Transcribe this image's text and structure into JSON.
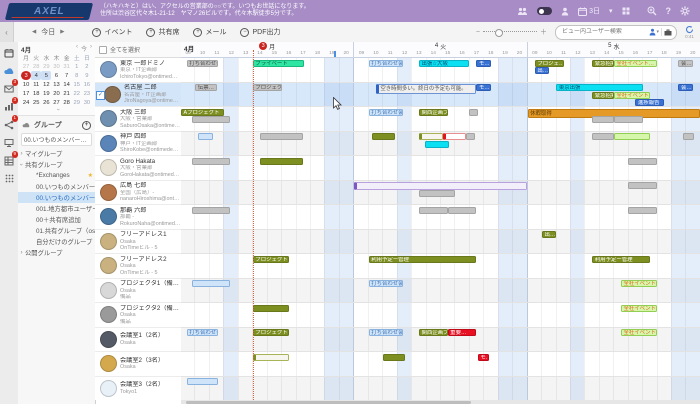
{
  "banner": {
    "logo": "AXEL",
    "greeting_line1": "（ハキハキと）はい、アクセルの営業部の○○です。いつもお世話になります。",
    "greeting_line2": "住所は渋谷区代々木1-21-12　ヤマノ26ビルです。代々木駅徒歩5分です。",
    "view_selector": "3日",
    "help": "?"
  },
  "toolbar": {
    "collapse": "‹",
    "prev": "◀",
    "today": "今日",
    "next": "▶",
    "event_btn": "イベント",
    "share_btn": "共有席",
    "mail_btn": "メール",
    "pdf_btn": "PDF出力",
    "zoom_minus": "−",
    "zoom_plus": "＋",
    "search_placeholder": "ビュー内ユーザー検索",
    "refresh_timer": "0:41"
  },
  "rail": {
    "badges": {
      "mail": "3",
      "stats": "3",
      "share": "1",
      "sheet": "9"
    }
  },
  "mini_calendar": {
    "title": "4月",
    "nav_prev": "‹",
    "nav_today": "今",
    "nav_next": "›",
    "dow": [
      "月",
      "火",
      "水",
      "木",
      "金",
      "土",
      "日"
    ],
    "weeks": [
      [
        "27",
        "28",
        "29",
        "30",
        "31",
        "1",
        "2"
      ],
      [
        "3",
        "4",
        "5",
        "6",
        "7",
        "8",
        "9"
      ],
      [
        "10",
        "11",
        "12",
        "13",
        "14",
        "15",
        "16"
      ],
      [
        "17",
        "18",
        "19",
        "20",
        "21",
        "22",
        "23"
      ],
      [
        "24",
        "25",
        "26",
        "27",
        "28",
        "29",
        "30"
      ]
    ],
    "today": "3",
    "selected_range": [
      "4",
      "5"
    ]
  },
  "groups": {
    "header": "グループ",
    "current": "00.いつものメンバー岡本…",
    "items": [
      {
        "label": "マイグループ",
        "level": 0,
        "arrow": "›"
      },
      {
        "label": "共有グループ",
        "level": 0,
        "arrow": "expanded"
      },
      {
        "label": "*Exchanges",
        "level": 1,
        "star": true
      },
      {
        "label": "00.いつものメンバー",
        "level": 1
      },
      {
        "label": "00.いつものメンバー…",
        "level": 1,
        "star": true,
        "selected": true
      },
      {
        "label": "001.地方都市ユーザー",
        "level": 1
      },
      {
        "label": "00＋共有席追加",
        "level": 1
      },
      {
        "label": "01.共有グループ（osd作…）",
        "level": 1
      },
      {
        "label": "自分だけのグループ",
        "level": 1
      },
      {
        "label": "公開グループ",
        "level": 0,
        "arrow": "›"
      }
    ]
  },
  "user_list": {
    "select_all": "全てを選択",
    "users": [
      {
        "name": "東京 一郎ドミノ",
        "dept": "東京・IT企画部",
        "email": "IchiroTokyo@ontimed…",
        "color": "#7a9cc4",
        "selected": false
      },
      {
        "name": "名古屋 二郎",
        "dept": "名古屋・IT企画部",
        "email": "JiroNagoya@ontimede…",
        "color": "#8a6d4f",
        "selected": true
      },
      {
        "name": "大阪 三郎",
        "dept": "大阪・営業部",
        "email": "SaburoOsaka@ontime…",
        "color": "#6f8fb0",
        "selected": false
      },
      {
        "name": "神戸 四郎",
        "dept": "神戸・IT企画部",
        "email": "ShiroKobe@ontimede…",
        "color": "#5b84b8",
        "selected": false
      },
      {
        "name": "Goro Hakata",
        "dept": "大阪・営業部",
        "email": "GoroHakata@ontimed…",
        "color": "#e8e3d5",
        "selected": false
      },
      {
        "name": "広島 七郎",
        "dept": "全国（広島）-",
        "email": "nanaroHiroshima@ont…",
        "color": "#b5774a",
        "selected": false
      },
      {
        "name": "那覇 六郎",
        "dept": "那覇 -",
        "email": "RokuroNaha@ontimed…",
        "color": "#4a7ba6",
        "selected": false
      },
      {
        "name": "フリーアドレス1",
        "dept": "Osaka",
        "email": "OnTimeビル - 5",
        "color": "#c9b280",
        "selected": false
      },
      {
        "name": "フリーアドレス2",
        "dept": "Osaka",
        "email": "OnTimeビル - 5",
        "color": "#c9b280",
        "selected": false
      },
      {
        "name": "プロジェクタ1（備品）",
        "dept": "Osaka",
        "email": "備品",
        "color": "#d8d8d8",
        "selected": false
      },
      {
        "name": "プロジェクタ2（備品）",
        "dept": "Osaka",
        "email": "備品",
        "color": "#9a9a9a",
        "selected": false
      },
      {
        "name": "会議室1（2名）",
        "dept": "Osaka",
        "email": "",
        "color": "#555b66",
        "selected": false
      },
      {
        "name": "会議室2（3名）",
        "dept": "Osaka",
        "email": "",
        "color": "#d4a94e",
        "selected": false
      },
      {
        "name": "会議室3（2名）",
        "dept": "Tokyo1",
        "email": "",
        "color": "#e8f0f8",
        "selected": false
      }
    ]
  },
  "grid": {
    "month_label": "4月",
    "days": [
      {
        "num": "3",
        "dow": "月",
        "today": true
      },
      {
        "num": "4",
        "dow": "火",
        "today": false
      },
      {
        "num": "5",
        "dow": "水",
        "today": false
      }
    ],
    "hours": [
      "09",
      "10",
      "11",
      "12",
      "13",
      "14",
      "15",
      "16",
      "17",
      "18",
      "19",
      "20"
    ],
    "events": [
      {
        "r": 0,
        "d": 0,
        "s": 9.4,
        "e": 11.6,
        "t": "gray",
        "l": "打ち合わせ会議",
        "ln": 0
      },
      {
        "r": 0,
        "d": 0,
        "s": 14,
        "e": 17.6,
        "t": "mint",
        "l": "プライベート",
        "ln": 0
      },
      {
        "r": 0,
        "d": 1,
        "s": 10,
        "e": 12.4,
        "t": "meeting",
        "l": "打ち合わせ会議",
        "ln": 0
      },
      {
        "r": 0,
        "d": 1,
        "s": 13.5,
        "e": 17,
        "t": "cyan",
        "l": "出張☆大阪",
        "ln": 0
      },
      {
        "r": 0,
        "d": 1,
        "s": 17.5,
        "e": 18.5,
        "t": "blue",
        "l": "モ…",
        "ln": 0
      },
      {
        "r": 0,
        "d": 2,
        "s": 9.5,
        "e": 11.5,
        "t": "olive",
        "l": "プロジェ…",
        "ln": 0
      },
      {
        "r": 0,
        "d": 2,
        "s": 13.5,
        "e": 15,
        "t": "olive",
        "l": "緊急招集…",
        "ln": 0
      },
      {
        "r": 0,
        "d": 2,
        "s": 15,
        "e": 18,
        "t": "lgreen",
        "l": "全社イベント…",
        "ln": 0
      },
      {
        "r": 0,
        "d": 2,
        "s": 19.5,
        "e": 20.5,
        "t": "gray",
        "l": "会…",
        "ln": 0
      },
      {
        "r": 0,
        "d": 2,
        "s": 9.5,
        "e": 10.5,
        "t": "blue",
        "l": "出…",
        "ln": 1
      },
      {
        "r": 1,
        "d": 0,
        "s": 10,
        "e": 11.5,
        "t": "gray",
        "l": "伝票…",
        "ln": 0
      },
      {
        "r": 1,
        "d": 0,
        "s": 14,
        "e": 16,
        "t": "gray",
        "l": "プロジェクト…",
        "ln": 0
      },
      {
        "r": 1,
        "d": 1,
        "s": 10.5,
        "e": 17.5,
        "t": "tip",
        "l": "空き時間多い。終日の予定も可能。",
        "ln": 0
      },
      {
        "r": 1,
        "d": 1,
        "s": 17.5,
        "e": 18.5,
        "t": "blue",
        "l": "モ…",
        "ln": 0
      },
      {
        "r": 1,
        "d": 2,
        "s": 11,
        "e": 17,
        "t": "cyan",
        "l": "東京出張",
        "ln": 0
      },
      {
        "r": 1,
        "d": 2,
        "s": 19.5,
        "e": 20.5,
        "t": "blue",
        "l": "会…",
        "ln": 0
      },
      {
        "r": 1,
        "d": 2,
        "s": 13.5,
        "e": 15,
        "t": "olive",
        "l": "緊急招集…",
        "ln": 1
      },
      {
        "r": 1,
        "d": 2,
        "s": 15,
        "e": 17.5,
        "t": "lgreen",
        "l": "全社イベント…",
        "ln": 1
      },
      {
        "r": 1,
        "d": 2,
        "s": 16.5,
        "e": 18.5,
        "t": "blue",
        "l": "進捗報告",
        "ln": 2
      },
      {
        "r": 2,
        "d": 0,
        "s": 9,
        "e": 12,
        "t": "olive",
        "l": "Aプロジェクト",
        "ln": 0
      },
      {
        "r": 2,
        "d": 0,
        "s": 9.8,
        "e": 12.4,
        "t": "gray",
        "l": "",
        "ln": 1
      },
      {
        "r": 2,
        "d": 1,
        "s": 10,
        "e": 12.4,
        "t": "meeting",
        "l": "打ち合わせ会議",
        "ln": 0
      },
      {
        "r": 2,
        "d": 1,
        "s": 13.5,
        "e": 15.5,
        "t": "olive",
        "l": "関西企画プ…",
        "ln": 0
      },
      {
        "r": 2,
        "d": 1,
        "s": 17,
        "e": 17.6,
        "t": "gray",
        "l": "",
        "ln": 0
      },
      {
        "r": 2,
        "d": 2,
        "s": 9,
        "e": 21,
        "t": "orange",
        "l": "休暇取得",
        "ln": 0
      },
      {
        "r": 2,
        "d": 2,
        "s": 13.5,
        "e": 15,
        "t": "gray",
        "l": "",
        "ln": 1
      },
      {
        "r": 2,
        "d": 2,
        "s": 15,
        "e": 17,
        "t": "gray",
        "l": "",
        "ln": 1
      },
      {
        "r": 3,
        "d": 0,
        "s": 10.2,
        "e": 11.2,
        "t": "meeting",
        "l": "",
        "ln": 0
      },
      {
        "r": 3,
        "d": 0,
        "s": 14.5,
        "e": 17.5,
        "t": "gray",
        "l": "",
        "ln": 0
      },
      {
        "r": 3,
        "d": 1,
        "s": 10.2,
        "e": 11.8,
        "t": "olive",
        "l": "",
        "ln": 0
      },
      {
        "r": 3,
        "d": 1,
        "s": 13.5,
        "e": 15.2,
        "t": "wolive",
        "l": "",
        "ln": 0
      },
      {
        "r": 3,
        "d": 1,
        "s": 15.2,
        "e": 16.8,
        "t": "wred",
        "l": "",
        "ln": 0
      },
      {
        "r": 3,
        "d": 1,
        "s": 16.8,
        "e": 17.4,
        "t": "gray",
        "l": "",
        "ln": 0
      },
      {
        "r": 3,
        "d": 1,
        "s": 13.9,
        "e": 15.6,
        "t": "cyan",
        "l": "",
        "ln": 1
      },
      {
        "r": 3,
        "d": 2,
        "s": 13.5,
        "e": 15,
        "t": "gray",
        "l": "",
        "ln": 0
      },
      {
        "r": 3,
        "d": 2,
        "s": 15,
        "e": 17.5,
        "t": "lgreen",
        "l": "",
        "ln": 0
      },
      {
        "r": 3,
        "d": 2,
        "s": 19.8,
        "e": 20.6,
        "t": "gray",
        "l": "",
        "ln": 0
      },
      {
        "r": 4,
        "d": 0,
        "s": 9.8,
        "e": 12.4,
        "t": "gray",
        "l": "",
        "ln": 0
      },
      {
        "r": 4,
        "d": 0,
        "s": 14.5,
        "e": 17.5,
        "t": "olive",
        "l": "",
        "ln": 0
      },
      {
        "r": 4,
        "d": 2,
        "s": 16,
        "e": 18,
        "t": "gray",
        "l": "",
        "ln": 0
      },
      {
        "r": 5,
        "d": 1,
        "s": 9,
        "e": 21,
        "t": "lav",
        "l": "",
        "ln": 0
      },
      {
        "r": 5,
        "d": 1,
        "s": 13.5,
        "e": 16,
        "t": "gray",
        "l": "",
        "ln": 1
      },
      {
        "r": 5,
        "d": 2,
        "s": 16,
        "e": 18,
        "t": "gray",
        "l": "",
        "ln": 0
      },
      {
        "r": 6,
        "d": 0,
        "s": 9.8,
        "e": 12.4,
        "t": "gray",
        "l": "",
        "ln": 0
      },
      {
        "r": 6,
        "d": 1,
        "s": 13.5,
        "e": 15.5,
        "t": "gray",
        "l": "",
        "ln": 0
      },
      {
        "r": 6,
        "d": 1,
        "s": 15.5,
        "e": 17.5,
        "t": "gray",
        "l": "",
        "ln": 0
      },
      {
        "r": 6,
        "d": 2,
        "s": 16,
        "e": 18,
        "t": "gray",
        "l": "",
        "ln": 0
      },
      {
        "r": 7,
        "d": 2,
        "s": 10,
        "e": 11,
        "t": "olive",
        "l": "出…",
        "ln": 0
      },
      {
        "r": 8,
        "d": 0,
        "s": 14,
        "e": 16.5,
        "t": "olive",
        "l": "プロジェクト…",
        "ln": 0
      },
      {
        "r": 8,
        "d": 1,
        "s": 10,
        "e": 17.5,
        "t": "olive",
        "l": "利用予定ー管理",
        "ln": 0
      },
      {
        "r": 8,
        "d": 2,
        "s": 13.5,
        "e": 17.5,
        "t": "olive",
        "l": "利用予定ー管理",
        "ln": 0
      },
      {
        "r": 9,
        "d": 0,
        "s": 9.8,
        "e": 12.4,
        "t": "meeting",
        "l": "",
        "ln": 0
      },
      {
        "r": 9,
        "d": 1,
        "s": 10,
        "e": 12.4,
        "t": "meeting",
        "l": "打ち合わせ会議",
        "ln": 0
      },
      {
        "r": 9,
        "d": 2,
        "s": 15.5,
        "e": 18,
        "t": "lgreen",
        "l": "全社イベント…",
        "ln": 0
      },
      {
        "r": 10,
        "d": 0,
        "s": 14,
        "e": 16.5,
        "t": "olive",
        "l": "",
        "ln": 0
      },
      {
        "r": 10,
        "d": 2,
        "s": 15.5,
        "e": 18,
        "t": "lgreen",
        "l": "全社イベント…",
        "ln": 0
      },
      {
        "r": 11,
        "d": 0,
        "s": 9.4,
        "e": 11.6,
        "t": "meeting",
        "l": "打ち合わせ会議",
        "ln": 0
      },
      {
        "r": 11,
        "d": 0,
        "s": 14,
        "e": 16.5,
        "t": "olive",
        "l": "プロジェクト…",
        "ln": 0
      },
      {
        "r": 11,
        "d": 1,
        "s": 10,
        "e": 12.4,
        "t": "meeting",
        "l": "打ち合わせ会議",
        "ln": 0
      },
      {
        "r": 11,
        "d": 1,
        "s": 13.5,
        "e": 15.5,
        "t": "olive",
        "l": "関西企画プ…",
        "ln": 0
      },
      {
        "r": 11,
        "d": 1,
        "s": 15.5,
        "e": 17.5,
        "t": "red",
        "l": "重要…",
        "ln": 0
      },
      {
        "r": 11,
        "d": 2,
        "s": 15.5,
        "e": 18,
        "t": "lgreen",
        "l": "全社イベント…",
        "ln": 0
      },
      {
        "r": 12,
        "d": 0,
        "s": 14,
        "e": 16.5,
        "t": "wolive",
        "l": "",
        "ln": 0
      },
      {
        "r": 12,
        "d": 1,
        "s": 11,
        "e": 12.5,
        "t": "olive",
        "l": "",
        "ln": 0
      },
      {
        "r": 12,
        "d": 1,
        "s": 17.6,
        "e": 18.4,
        "t": "red",
        "l": "モ…",
        "ln": 0
      },
      {
        "r": 13,
        "d": 0,
        "s": 9.4,
        "e": 11.6,
        "t": "meeting",
        "l": "",
        "ln": 0
      }
    ]
  },
  "colors": {
    "banner": "#a78cc6",
    "today_badge": "#c9241f",
    "selection": "#d8e8fb",
    "accent_blue": "#4a90e2"
  }
}
